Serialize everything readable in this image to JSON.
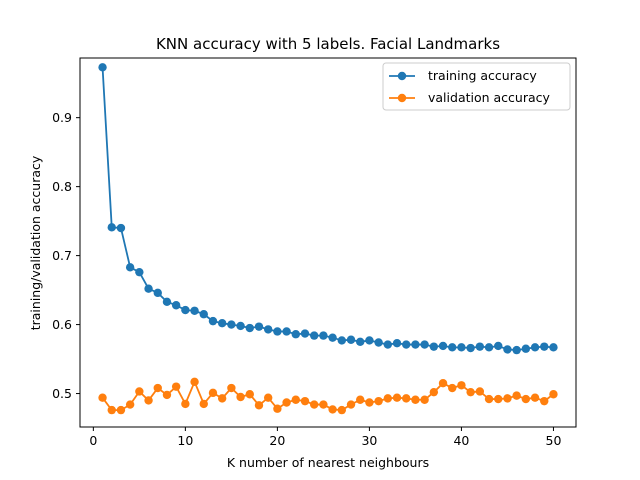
{
  "chart_data": {
    "type": "line",
    "title": "KNN accuracy with 5 labels. Facial Landmarks",
    "xlabel": "K number of nearest neighbours",
    "ylabel": "training/validation accuracy",
    "xlim": [
      -1.45,
      52.45
    ],
    "ylim": [
      0.4515,
      0.9865
    ],
    "xticks": [
      0,
      10,
      20,
      30,
      40,
      50
    ],
    "yticks": [
      0.5,
      0.6,
      0.7,
      0.8,
      0.9
    ],
    "ytick_labels": [
      "0.5",
      "0.6",
      "0.7",
      "0.8",
      "0.9"
    ],
    "grid": false,
    "legend_position": "top-right",
    "x": [
      1,
      2,
      3,
      4,
      5,
      6,
      7,
      8,
      9,
      10,
      11,
      12,
      13,
      14,
      15,
      16,
      17,
      18,
      19,
      20,
      21,
      22,
      23,
      24,
      25,
      26,
      27,
      28,
      29,
      30,
      31,
      32,
      33,
      34,
      35,
      36,
      37,
      38,
      39,
      40,
      41,
      42,
      43,
      44,
      45,
      46,
      47,
      48,
      49,
      50
    ],
    "series": [
      {
        "name": "training accuracy",
        "color": "#1f77b4",
        "values": [
          0.973,
          0.741,
          0.74,
          0.683,
          0.676,
          0.652,
          0.646,
          0.633,
          0.628,
          0.621,
          0.62,
          0.615,
          0.605,
          0.602,
          0.6,
          0.598,
          0.595,
          0.597,
          0.593,
          0.59,
          0.59,
          0.586,
          0.587,
          0.584,
          0.584,
          0.581,
          0.577,
          0.578,
          0.575,
          0.577,
          0.574,
          0.571,
          0.573,
          0.571,
          0.571,
          0.571,
          0.568,
          0.569,
          0.567,
          0.567,
          0.566,
          0.568,
          0.567,
          0.569,
          0.564,
          0.563,
          0.565,
          0.567,
          0.568,
          0.567
        ]
      },
      {
        "name": "validation accuracy",
        "color": "#ff7f0e",
        "values": [
          0.494,
          0.476,
          0.476,
          0.484,
          0.503,
          0.49,
          0.508,
          0.498,
          0.51,
          0.485,
          0.517,
          0.485,
          0.501,
          0.493,
          0.508,
          0.495,
          0.499,
          0.483,
          0.494,
          0.478,
          0.487,
          0.491,
          0.489,
          0.484,
          0.484,
          0.477,
          0.476,
          0.484,
          0.491,
          0.487,
          0.489,
          0.493,
          0.494,
          0.493,
          0.491,
          0.491,
          0.502,
          0.515,
          0.508,
          0.512,
          0.502,
          0.503,
          0.492,
          0.492,
          0.493,
          0.497,
          0.492,
          0.494,
          0.489,
          0.499
        ]
      }
    ]
  }
}
